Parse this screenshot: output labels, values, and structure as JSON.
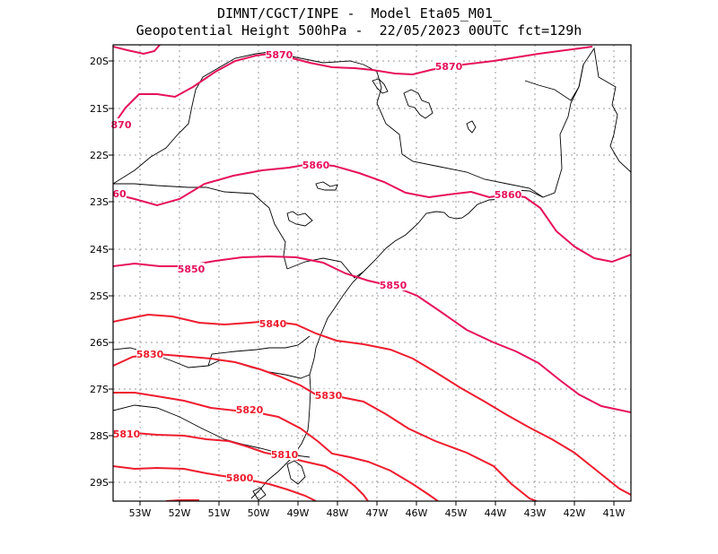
{
  "title_line1": "DIMNT/CGCT/INPE -  Model Eta05_M01_",
  "title_line2": "Geopotential Height 500hPa -  22/05/2023 00UTC fct=129h",
  "colors": {
    "contour_magenta": "#e6105a",
    "contour_red": "#ee1c2e",
    "coast": "#000000",
    "grid": "#9a9a9a"
  },
  "lat_labels": [
    "20S",
    "21S",
    "22S",
    "23S",
    "24S",
    "25S",
    "26S",
    "27S",
    "28S",
    "29S"
  ],
  "lon_labels": [
    "53W",
    "52W",
    "51W",
    "50W",
    "49W",
    "48W",
    "47W",
    "46W",
    "45W",
    "44W",
    "43W",
    "42W",
    "41W"
  ],
  "contour_labels": [
    {
      "text": "5870",
      "color_key": "contour_magenta"
    },
    {
      "text": "5870",
      "color_key": "contour_magenta"
    },
    {
      "text": "870",
      "color_key": "contour_magenta"
    },
    {
      "text": "5860",
      "color_key": "contour_magenta"
    },
    {
      "text": "60",
      "color_key": "contour_magenta"
    },
    {
      "text": "5860",
      "color_key": "contour_magenta"
    },
    {
      "text": "5850",
      "color_key": "contour_magenta"
    },
    {
      "text": "5850",
      "color_key": "contour_magenta"
    },
    {
      "text": "5840",
      "color_key": "contour_red"
    },
    {
      "text": "5830",
      "color_key": "contour_red"
    },
    {
      "text": "5830",
      "color_key": "contour_red"
    },
    {
      "text": "5820",
      "color_key": "contour_red"
    },
    {
      "text": "5810",
      "color_key": "contour_red"
    },
    {
      "text": "5810",
      "color_key": "contour_red"
    },
    {
      "text": "5800",
      "color_key": "contour_red"
    }
  ]
}
